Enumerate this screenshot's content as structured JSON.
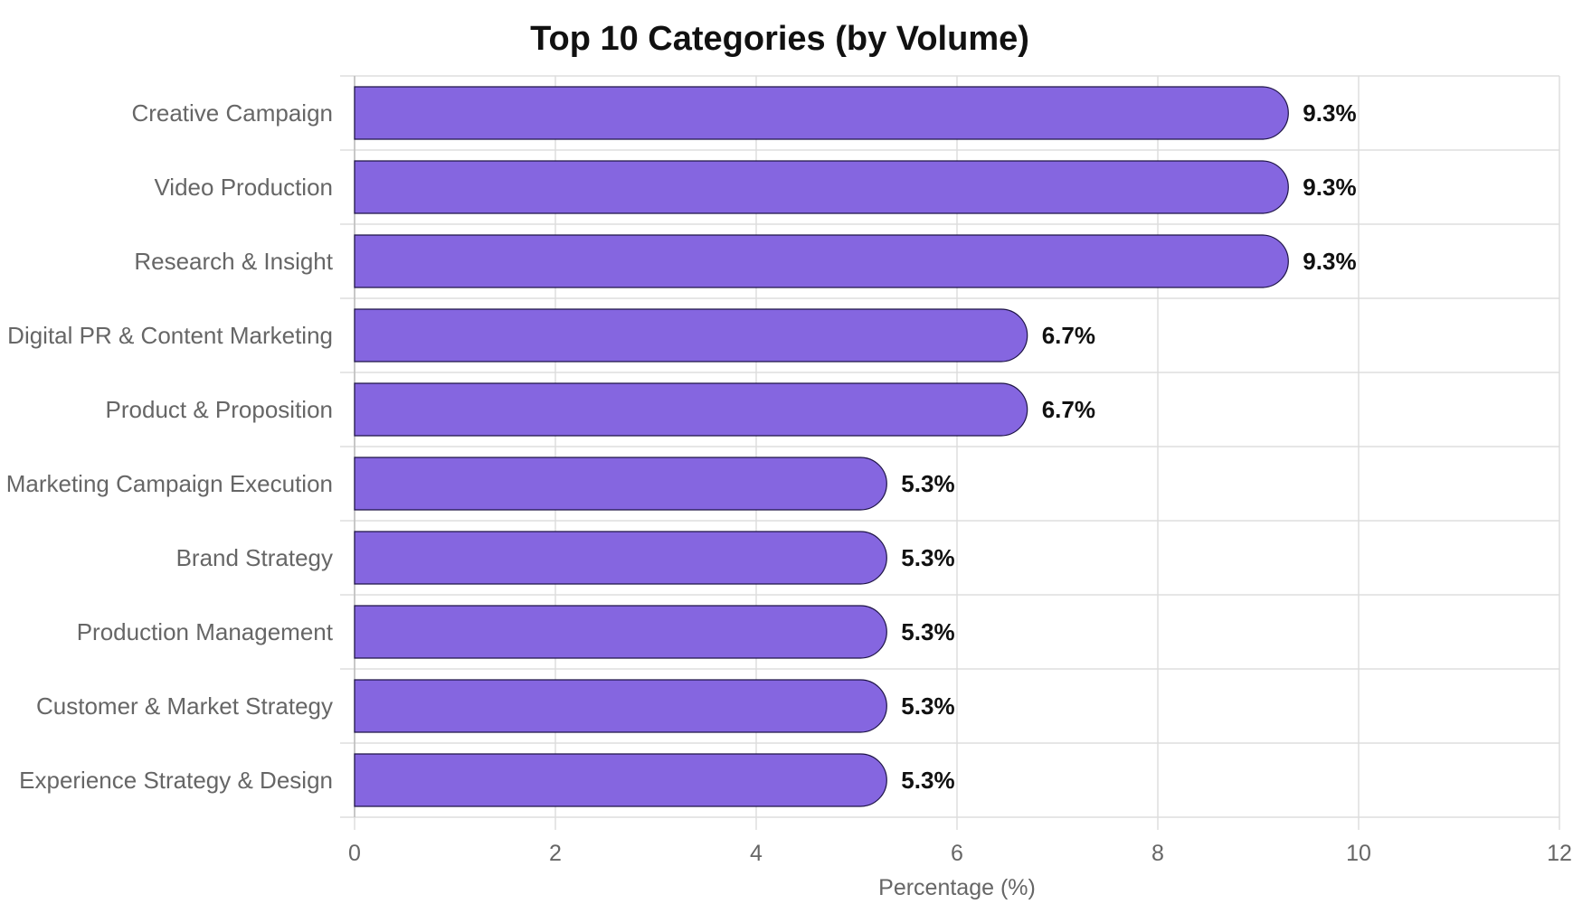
{
  "chart_data": {
    "type": "bar",
    "orientation": "horizontal",
    "title": "Top 10 Categories (by Volume)",
    "xlabel": "Percentage (%)",
    "ylabel": "",
    "xlim": [
      0,
      12
    ],
    "xticks": [
      0,
      2,
      4,
      6,
      8,
      10,
      12
    ],
    "grid": true,
    "bar_color": "#8566e0",
    "bar_edge_color": "#1e1446",
    "value_suffix": "%",
    "categories": [
      "Creative Campaign",
      "Video Production",
      "Research & Insight",
      "Digital PR & Content Marketing",
      "Product & Proposition",
      "Marketing Campaign Execution",
      "Brand Strategy",
      "Production Management",
      "Customer & Market Strategy",
      "Experience Strategy & Design"
    ],
    "values": [
      9.3,
      9.3,
      9.3,
      6.7,
      6.7,
      5.3,
      5.3,
      5.3,
      5.3,
      5.3
    ],
    "data_labels": [
      "9.3%",
      "9.3%",
      "9.3%",
      "6.7%",
      "6.7%",
      "5.3%",
      "5.3%",
      "5.3%",
      "5.3%",
      "5.3%"
    ]
  }
}
